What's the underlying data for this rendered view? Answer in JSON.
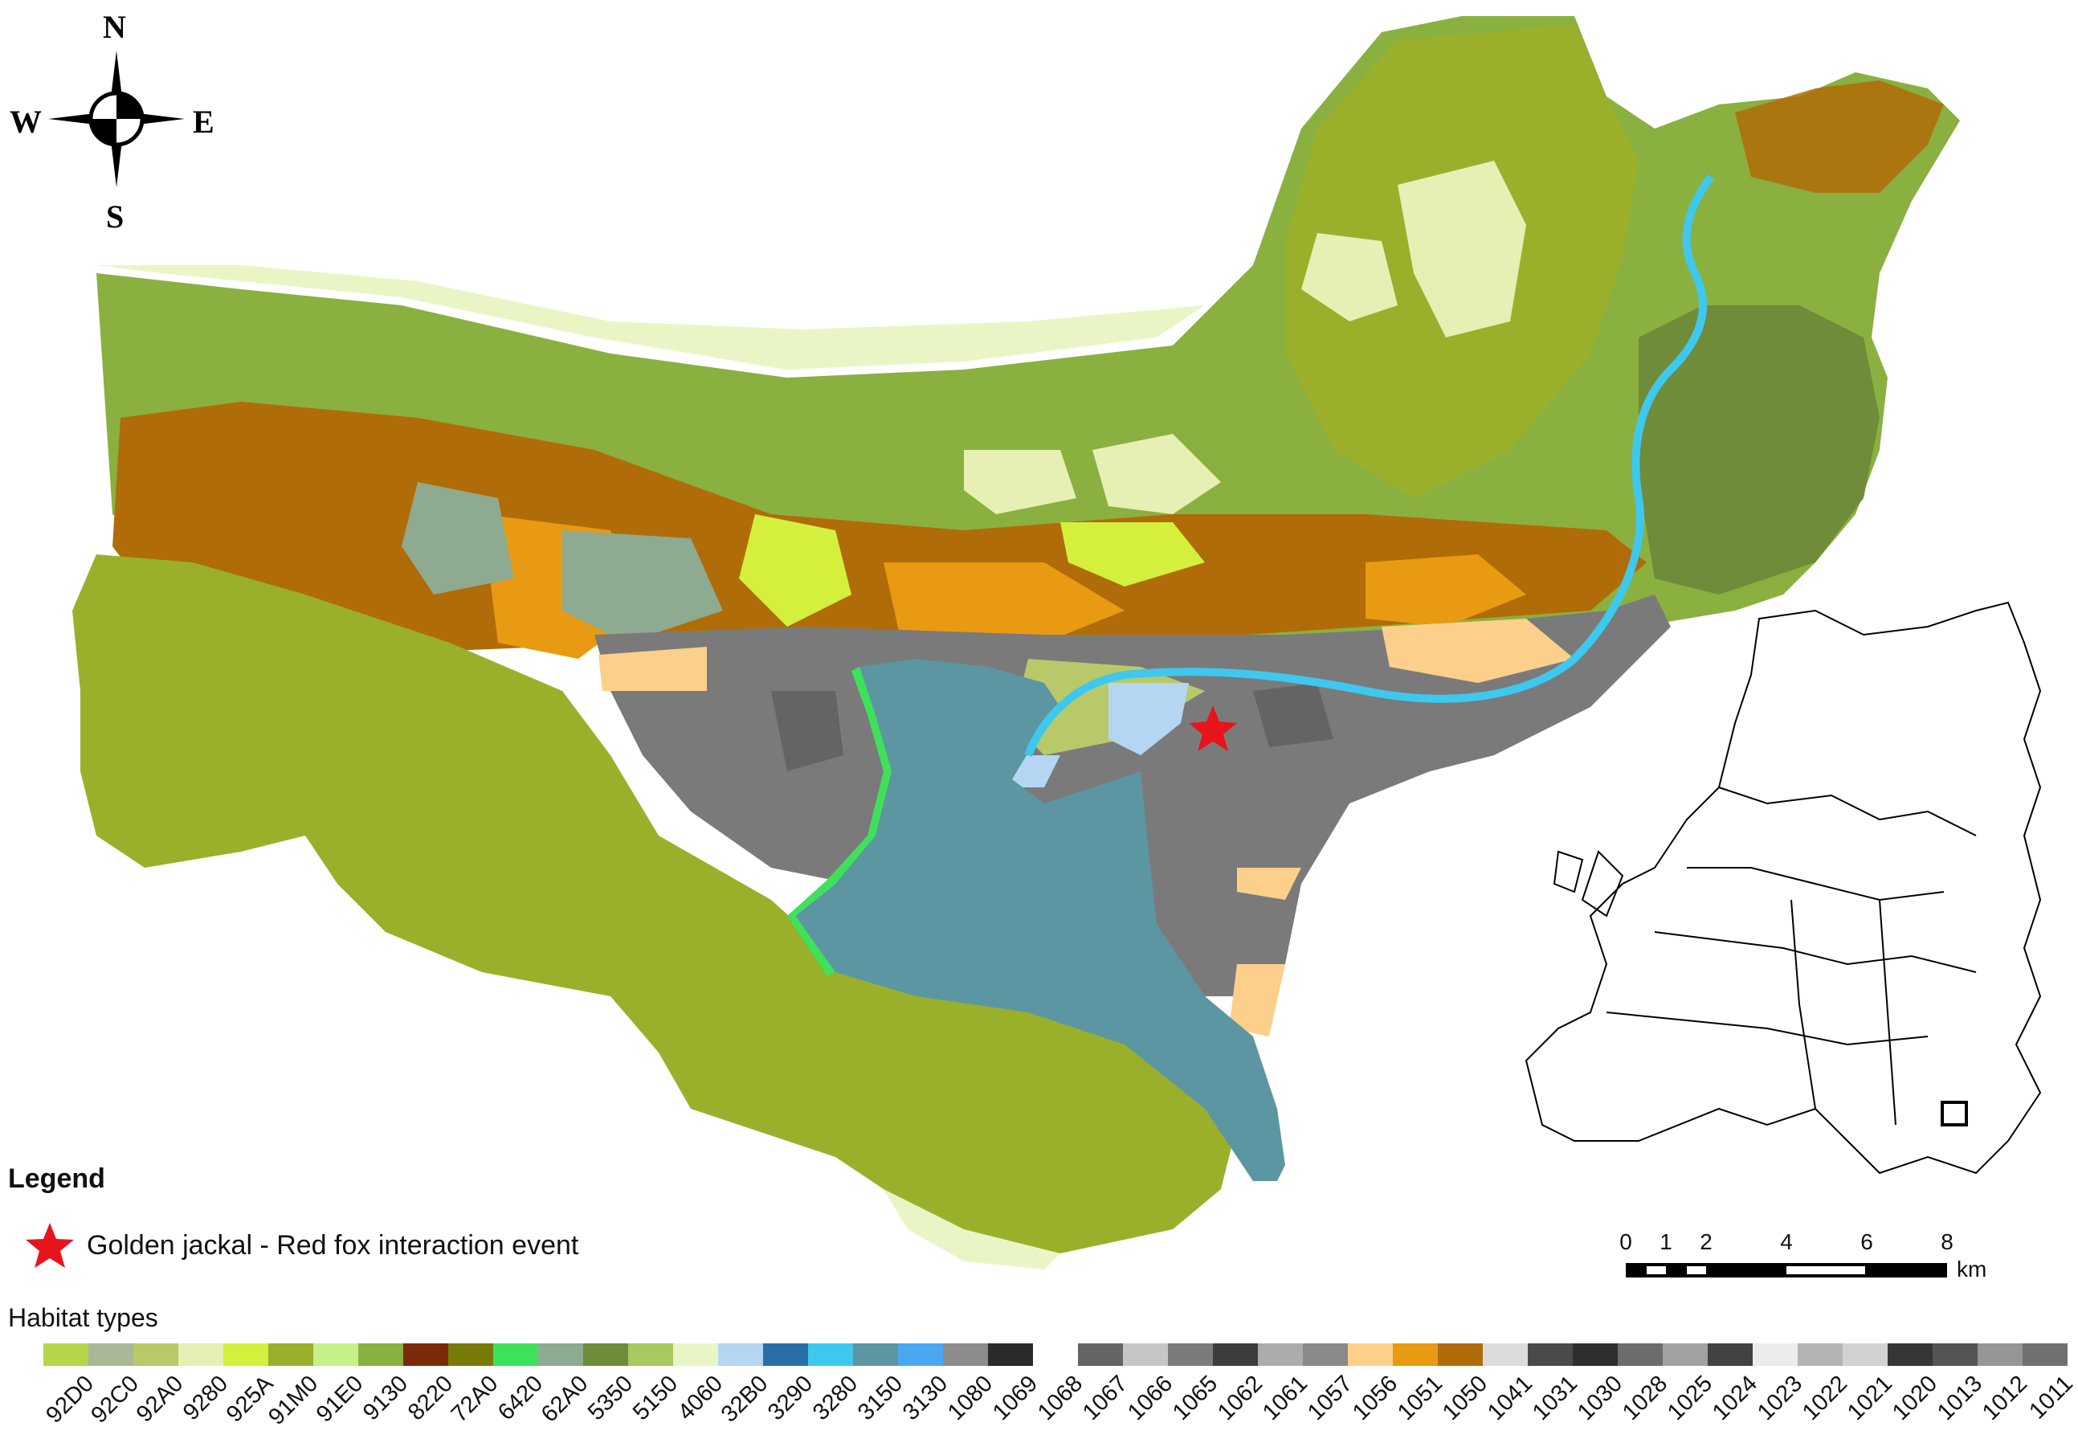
{
  "compass": {
    "n": "N",
    "s": "S",
    "e": "E",
    "w": "W"
  },
  "legend": {
    "title": "Legend",
    "marker_label": "Golden jackal - Red fox interaction event",
    "marker_color": "#e8141c"
  },
  "scale_bar": {
    "ticks": [
      "0",
      "1",
      "2",
      "4",
      "6",
      "8"
    ],
    "unit": "km"
  },
  "habitat_types": {
    "title": "Habitat types",
    "items": [
      {
        "code": "92D0",
        "color": "#b5d64a"
      },
      {
        "code": "92C0",
        "color": "#a9b896"
      },
      {
        "code": "92A0",
        "color": "#b8c96a"
      },
      {
        "code": "9280",
        "color": "#e6f0b4"
      },
      {
        "code": "925A",
        "color": "#d4f03c"
      },
      {
        "code": "91M0",
        "color": "#9ab02a"
      },
      {
        "code": "91E0",
        "color": "#c8f08a"
      },
      {
        "code": "9130",
        "color": "#8ab040"
      },
      {
        "code": "8220",
        "color": "#7a2a06"
      },
      {
        "code": "72A0",
        "color": "#787a08"
      },
      {
        "code": "6420",
        "color": "#3ee25a"
      },
      {
        "code": "62A0",
        "color": "#8eaa90"
      },
      {
        "code": "5350",
        "color": "#6f8c3a"
      },
      {
        "code": "5150",
        "color": "#a8c860"
      },
      {
        "code": "4060",
        "color": "#eaf5c6"
      },
      {
        "code": "32B0",
        "color": "#b4d6f2"
      },
      {
        "code": "3290",
        "color": "#2a6ea8"
      },
      {
        "code": "3280",
        "color": "#3ec8ee"
      },
      {
        "code": "3150",
        "color": "#5c96a2"
      },
      {
        "code": "3130",
        "color": "#4aa8f2"
      },
      {
        "code": "1080",
        "color": "#8c8c8c"
      },
      {
        "code": "1069",
        "color": "#2a2a2a"
      },
      {
        "code": "1068",
        "color": "#ffffff"
      },
      {
        "code": "1067",
        "color": "#646464"
      },
      {
        "code": "1066",
        "color": "#c6c6c6"
      },
      {
        "code": "1065",
        "color": "#7a7a7a"
      },
      {
        "code": "1062",
        "color": "#3c3c3c"
      },
      {
        "code": "1061",
        "color": "#acacac"
      },
      {
        "code": "1057",
        "color": "#8a8a8a"
      },
      {
        "code": "1056",
        "color": "#fcd08a"
      },
      {
        "code": "1051",
        "color": "#e89a12"
      },
      {
        "code": "1050",
        "color": "#b06c08"
      },
      {
        "code": "1041",
        "color": "#dcdcdc"
      },
      {
        "code": "1031",
        "color": "#4a4a4a"
      },
      {
        "code": "1030",
        "color": "#2e2e2e"
      },
      {
        "code": "1028",
        "color": "#6c6c6c"
      },
      {
        "code": "1025",
        "color": "#a2a2a2"
      },
      {
        "code": "1024",
        "color": "#424242"
      },
      {
        "code": "1023",
        "color": "#ececec"
      },
      {
        "code": "1022",
        "color": "#b4b4b4"
      },
      {
        "code": "1021",
        "color": "#d2d2d2"
      },
      {
        "code": "1020",
        "color": "#363636"
      },
      {
        "code": "1013",
        "color": "#545454"
      },
      {
        "code": "1012",
        "color": "#969696"
      },
      {
        "code": "1011",
        "color": "#707070"
      }
    ]
  }
}
